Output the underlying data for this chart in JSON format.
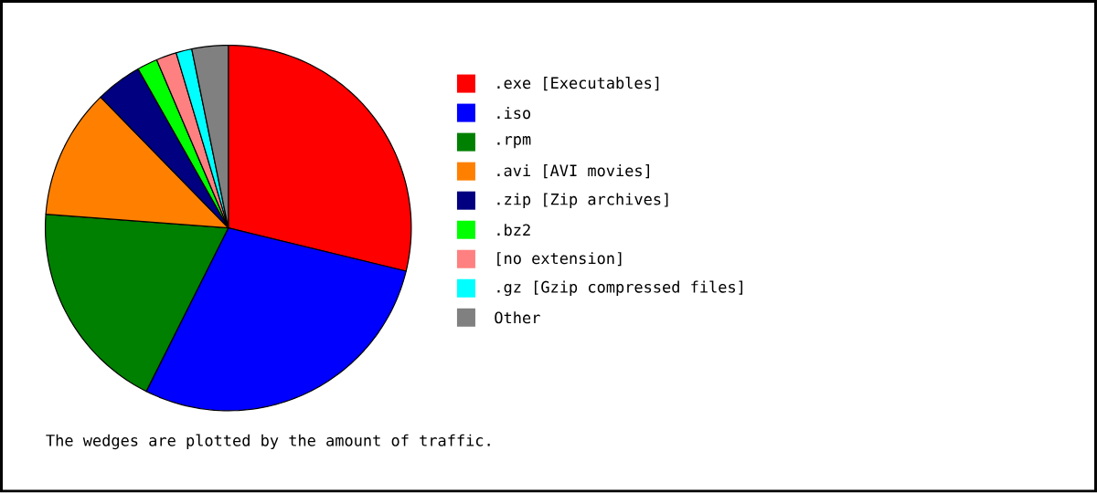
{
  "chart_data": {
    "type": "pie",
    "categories": [
      ".exe [Executables]",
      ".iso",
      ".rpm",
      ".avi [AVI movies]",
      ".zip [Zip archives]",
      ".bz2",
      "[no extension]",
      ".gz [Gzip compressed files]",
      "Other"
    ],
    "values": [
      28.8,
      28.6,
      18.8,
      11.5,
      4.1,
      1.8,
      1.8,
      1.4,
      3.2
    ],
    "colors": [
      "#ff0000",
      "#0000ff",
      "#008000",
      "#ff8000",
      "#000080",
      "#00ff00",
      "#ff8080",
      "#00ffff",
      "#808080"
    ],
    "legend": "right",
    "annotations": [
      "The wedges are plotted by the amount of traffic."
    ]
  }
}
